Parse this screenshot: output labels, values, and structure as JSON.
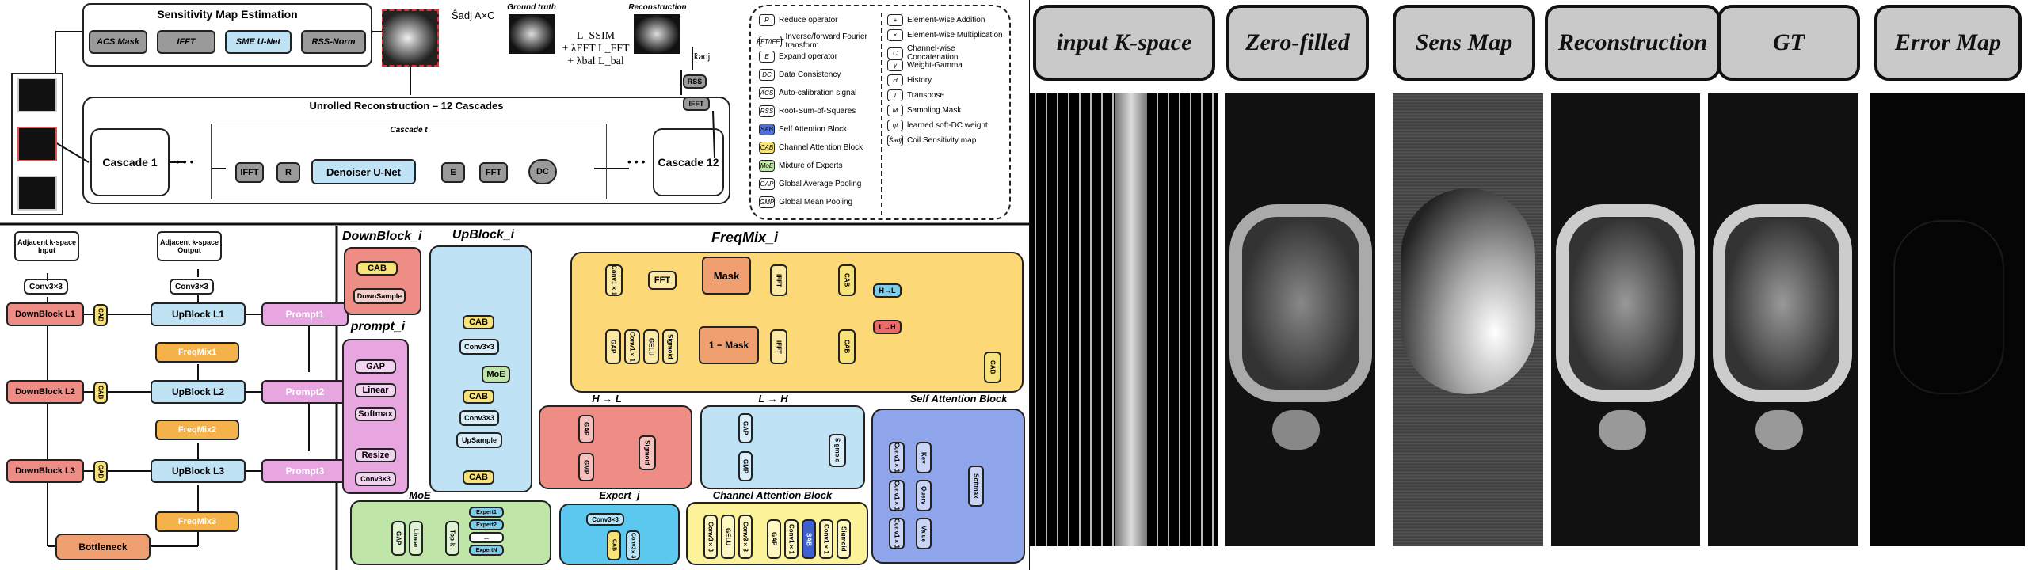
{
  "sensitivity": {
    "title": "Sensitivity Map Estimation",
    "blocks": [
      "ACS Mask",
      "IFFT",
      "SME U-Net",
      "RSS-Norm"
    ],
    "output": "Ŝadj A×C",
    "ground_truth": "Ground truth",
    "reconstruction": "Reconstruction",
    "loss_line1": "L_SSIM",
    "loss_line2": "+ λFFT L_FFT",
    "loss_line3": "+ λbal L_bal",
    "rss": "RSS",
    "ifft": "IFFT",
    "kadj": "k̂adj"
  },
  "unrolled": {
    "title": "Unrolled Reconstruction – 12 Cascades",
    "cascade1": "Cascade 1",
    "cascade12": "Cascade 12",
    "cascade_t": "Cascade t",
    "ellipsis": "• • •",
    "blocks": [
      "IFFT",
      "R",
      "Denoiser U-Net",
      "E",
      "FFT",
      "DC"
    ]
  },
  "legend": {
    "left": [
      {
        "sym": "R",
        "text": "Reduce operator"
      },
      {
        "sym": "FFT/IFFT",
        "text": "Inverse/forward Fourier transform"
      },
      {
        "sym": "E",
        "text": "Expand operator"
      },
      {
        "sym": "DC",
        "text": "Data Consistency"
      },
      {
        "sym": "ACS",
        "text": "Auto-calibration signal"
      },
      {
        "sym": "RSS",
        "text": "Root-Sum-of-Squares"
      },
      {
        "sym": "SAB",
        "text": "Self Attention Block"
      },
      {
        "sym": "CAB",
        "text": "Channel Attention Block"
      },
      {
        "sym": "MoE",
        "text": "Mixture of Experts"
      },
      {
        "sym": "GAP",
        "text": "Global Average Pooling"
      },
      {
        "sym": "GMP",
        "text": "Global Mean Pooling"
      }
    ],
    "right": [
      {
        "sym": "+",
        "text": "Element-wise Addition"
      },
      {
        "sym": "×",
        "text": "Element-wise Multiplication"
      },
      {
        "sym": "C",
        "text": "Channel-wise Concatenation"
      },
      {
        "sym": "γ",
        "text": "Weight-Gamma"
      },
      {
        "sym": "H",
        "text": "History"
      },
      {
        "sym": "T",
        "text": "Transpose"
      },
      {
        "sym": "M",
        "text": "Sampling Mask"
      },
      {
        "sym": "ηt",
        "text": "learned soft-DC weight"
      },
      {
        "sym": "Ŝadj",
        "text": "Coil Sensitivity map"
      }
    ]
  },
  "promptunet": {
    "input": "Adjacent k-space Input",
    "output": "Adjacent k-space Output",
    "conv": "Conv3×3",
    "down": [
      "DownBlock L1",
      "DownBlock L2",
      "DownBlock L3"
    ],
    "up": [
      "UpBlock L1",
      "UpBlock L2",
      "UpBlock L3"
    ],
    "freqmix": [
      "FreqMix1",
      "FreqMix2",
      "FreqMix3"
    ],
    "prompt": [
      "Prompt1",
      "Prompt2",
      "Prompt3"
    ],
    "cab": "CAB",
    "bottleneck": "Bottleneck"
  },
  "blocks": {
    "downblock_title": "DownBlock_i",
    "upblock_title": "UpBlock_i",
    "prompt_title": "prompt_i",
    "freqmix_title": "FreqMix_i",
    "moe_title": "MoE",
    "expert_title": "Expert_j",
    "cab_title": "Channel Attention Block",
    "sab_title": "Self Attention Block",
    "h2l_title": "H → L",
    "l2h_title": "L → H",
    "prompt_ops": [
      "GAP",
      "Linear",
      "Softmax",
      "Resize",
      "Conv3×3"
    ],
    "down_ops": [
      "CAB",
      "DownSample"
    ],
    "up_ops": [
      "CAB",
      "Conv3×3",
      "MoE",
      "CAB",
      "Conv3×3",
      "UpSample",
      "CAB"
    ],
    "freqmix_ops": [
      "Conv1×1",
      "FFT",
      "Mask",
      "IFFT",
      "CAB",
      "GAP",
      "Conv1×1",
      "GELU",
      "Sigmoid",
      "1 − Mask",
      "IFFT",
      "CAB",
      "H→L",
      "L→H",
      "CAB"
    ],
    "moe_ops": [
      "GAP",
      "Linear",
      "Linear",
      "Top-k",
      "Expert1",
      "Expert2",
      "...",
      "ExpertN"
    ],
    "expert_ops": [
      "Conv3×3",
      "CAB",
      "Conv3×3"
    ],
    "cab_ops": [
      "Conv3×3",
      "GELU",
      "Conv3×3",
      "GAP",
      "Conv1×1",
      "SAB",
      "Conv1×1",
      "Sigmoid"
    ],
    "sab_ops": [
      "Conv1×1",
      "Conv1×1",
      "Conv1×1",
      "Key",
      "Query",
      "Value",
      "Softmax"
    ]
  },
  "results": {
    "tabs": [
      "input K-space",
      "Zero-filled",
      "Sens Map",
      "Reconstruction",
      "GT",
      "Error Map"
    ]
  }
}
